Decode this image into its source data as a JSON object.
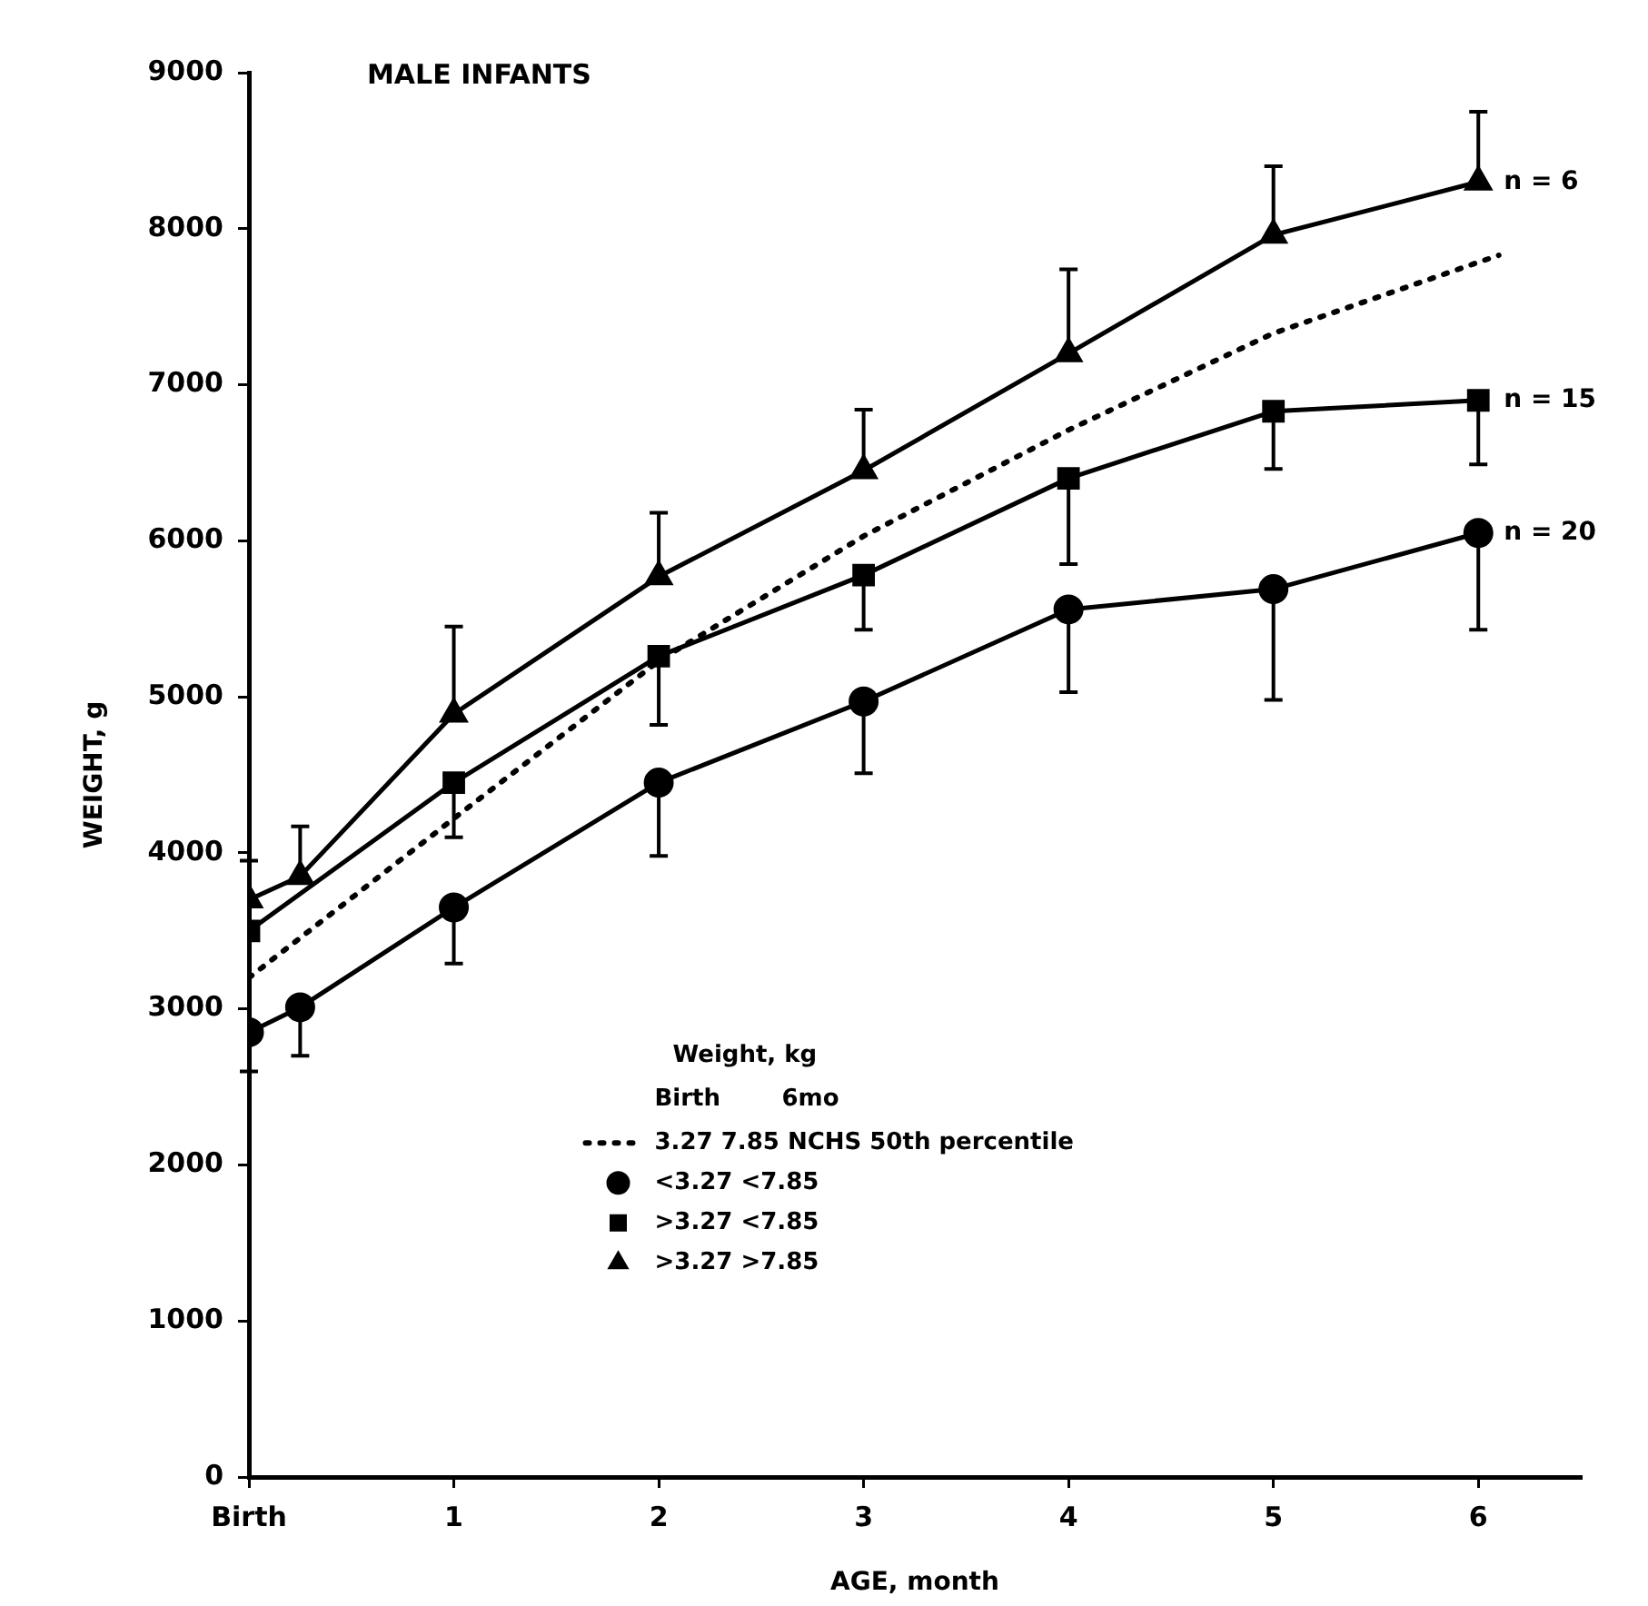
{
  "chart_data": {
    "type": "line",
    "title": "MALE INFANTS",
    "xlabel": "AGE, month",
    "ylabel": "WEIGHT, g",
    "legend_title": "Weight, kg",
    "xlim": [
      0,
      6.5
    ],
    "xticks": [
      {
        "value": 0,
        "label": "Birth"
      },
      1,
      2,
      3,
      4,
      5,
      6
    ],
    "ylim": [
      0,
      9000
    ],
    "yticks": [
      0,
      1000,
      2000,
      3000,
      4000,
      5000,
      6000,
      7000,
      8000,
      9000
    ],
    "grid": false,
    "legend": "bottom",
    "annotations": [
      "Birth",
      "6mo",
      "n = 6",
      "n = 15",
      "n = 20"
    ],
    "series": [
      {
        "name": "3.27 7.85 NCHS 50th percentile",
        "color": "#000000",
        "marker": "none",
        "line_style": "dotted",
        "x": [
          0,
          1,
          2,
          3,
          4,
          5,
          6.1
        ],
        "values": [
          3200,
          4220,
          5230,
          6030,
          6710,
          7330,
          7830
        ]
      },
      {
        "name": "<3.27 <7.85",
        "color": "#000000",
        "marker": "circle",
        "line_style": "solid",
        "x": [
          0,
          0.25,
          1,
          2,
          3,
          4,
          5,
          6
        ],
        "values": [
          2850,
          3010,
          3650,
          4450,
          4970,
          5560,
          5690,
          6050
        ],
        "errors": [
          [
            2600,
            2850
          ],
          [
            2700,
            3010
          ],
          [
            3290,
            3650
          ],
          [
            3980,
            4450
          ],
          [
            4510,
            4970
          ],
          [
            5030,
            5560
          ],
          [
            4980,
            5690
          ],
          [
            5430,
            6050
          ]
        ]
      },
      {
        "name": ">3.27 <7.85",
        "color": "#000000",
        "marker": "square",
        "line_style": "solid",
        "x": [
          0,
          1,
          2,
          3,
          4,
          5,
          6
        ],
        "values": [
          3500,
          4450,
          5260,
          5780,
          6400,
          6830,
          6900
        ],
        "errors": [
          null,
          [
            4100,
            4450
          ],
          [
            4820,
            5260
          ],
          [
            5430,
            5780
          ],
          [
            5850,
            6400
          ],
          [
            6460,
            6830
          ],
          [
            6490,
            6900
          ]
        ]
      },
      {
        "name": ">3.27 >7.85",
        "color": "#000000",
        "marker": "triangle",
        "line_style": "solid",
        "x": [
          0,
          0.25,
          1,
          2,
          3,
          4,
          5,
          6
        ],
        "values": [
          3700,
          3850,
          4890,
          5770,
          6450,
          7200,
          7960,
          8300
        ],
        "errors": [
          [
            3700,
            3950
          ],
          [
            3850,
            4170
          ],
          [
            4890,
            5450
          ],
          [
            5770,
            6180
          ],
          [
            6450,
            6840
          ],
          [
            7200,
            7740
          ],
          [
            7960,
            8400
          ],
          [
            8300,
            8750
          ]
        ]
      }
    ]
  }
}
